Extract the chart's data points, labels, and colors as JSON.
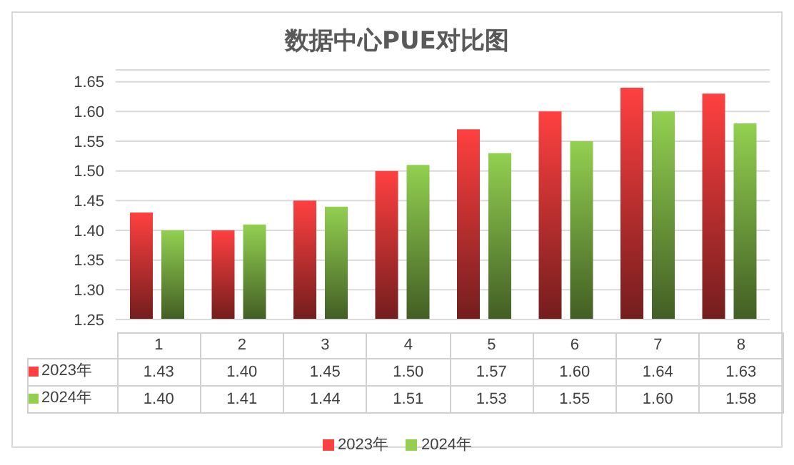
{
  "chart_data": {
    "type": "bar",
    "title": "数据中心PUE对比图",
    "categories": [
      "1",
      "2",
      "3",
      "4",
      "5",
      "6",
      "7",
      "8"
    ],
    "series": [
      {
        "name": "2023年",
        "color": "#ff4040",
        "values": [
          1.43,
          1.4,
          1.45,
          1.5,
          1.57,
          1.6,
          1.64,
          1.63
        ],
        "value_labels": [
          "1.43",
          "1.40",
          "1.45",
          "1.50",
          "1.57",
          "1.60",
          "1.64",
          "1.63"
        ]
      },
      {
        "name": "2024年",
        "color": "#92d050",
        "values": [
          1.4,
          1.41,
          1.44,
          1.51,
          1.53,
          1.55,
          1.6,
          1.58
        ],
        "value_labels": [
          "1.40",
          "1.41",
          "1.44",
          "1.51",
          "1.53",
          "1.55",
          "1.60",
          "1.58"
        ]
      }
    ],
    "ylim": [
      1.25,
      1.67
    ],
    "yticks": [
      {
        "value": 1.25,
        "label": "1.25"
      },
      {
        "value": 1.3,
        "label": "1.30"
      },
      {
        "value": 1.35,
        "label": "1.35"
      },
      {
        "value": 1.4,
        "label": "1.40"
      },
      {
        "value": 1.45,
        "label": "1.45"
      },
      {
        "value": 1.5,
        "label": "1.50"
      },
      {
        "value": 1.55,
        "label": "1.55"
      },
      {
        "value": 1.6,
        "label": "1.60"
      },
      {
        "value": 1.65,
        "label": "1.65"
      }
    ],
    "grid": "y",
    "legend": "bottom"
  }
}
